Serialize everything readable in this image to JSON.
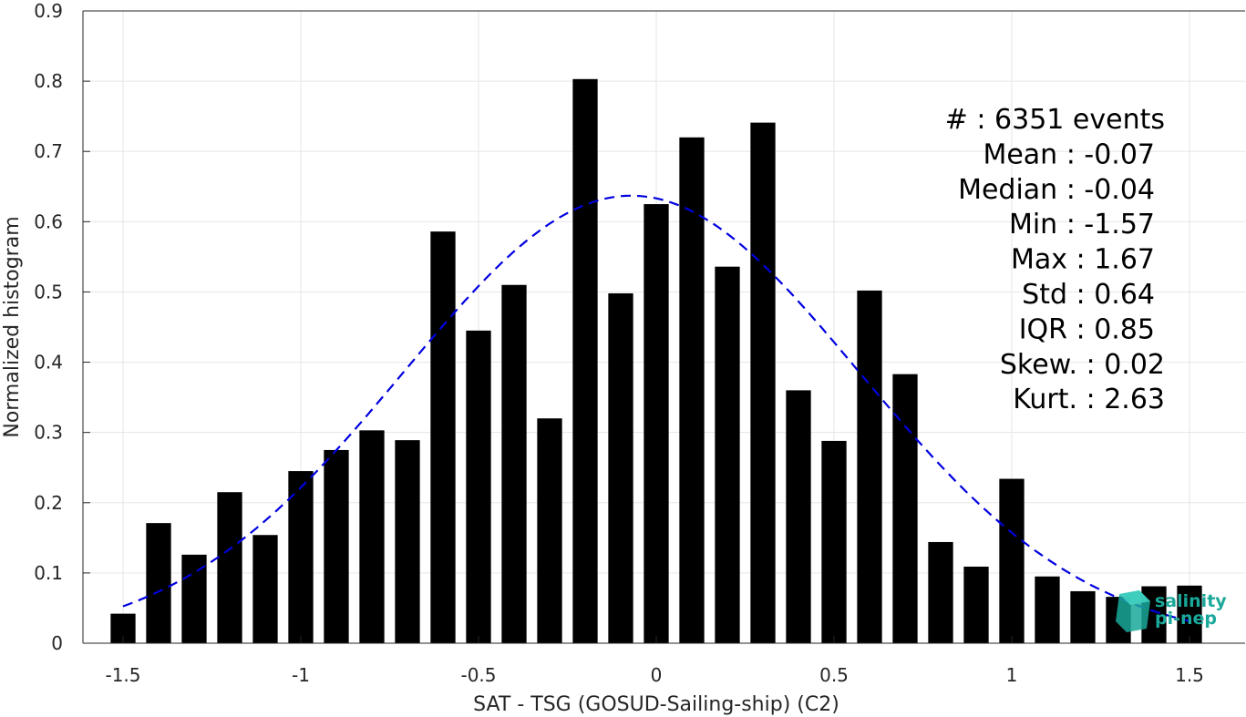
{
  "chart_data": {
    "type": "bar",
    "xlabel": "SAT - TSG (GOSUD-Sailing-ship) (C2)",
    "ylabel": "Normalized histogram",
    "xlim": [
      -1.55,
      1.55
    ],
    "ylim": [
      0,
      0.9
    ],
    "xticks": [
      -1.5,
      -1,
      -0.5,
      0,
      0.5,
      1,
      1.5
    ],
    "xtick_labels": [
      "-1.5",
      "-1",
      "-0.5",
      "0",
      "0.5",
      "1",
      "1.5"
    ],
    "yticks": [
      0,
      0.1,
      0.2,
      0.3,
      0.4,
      0.5,
      0.6,
      0.7,
      0.8,
      0.9
    ],
    "ytick_labels": [
      "0",
      "0.1",
      "0.2",
      "0.3",
      "0.4",
      "0.5",
      "0.6",
      "0.7",
      "0.8",
      "0.9"
    ],
    "grid": true,
    "bar_color": "#000000",
    "bar_width": 0.07,
    "x": [
      -1.5,
      -1.4,
      -1.3,
      -1.2,
      -1.1,
      -1.0,
      -0.9,
      -0.8,
      -0.7,
      -0.6,
      -0.5,
      -0.4,
      -0.3,
      -0.2,
      -0.1,
      0.0,
      0.1,
      0.2,
      0.3,
      0.4,
      0.5,
      0.6,
      0.7,
      0.8,
      0.9,
      1.0,
      1.1,
      1.2,
      1.3,
      1.4,
      1.5
    ],
    "values": [
      0.042,
      0.171,
      0.126,
      0.215,
      0.154,
      0.245,
      0.275,
      0.303,
      0.289,
      0.586,
      0.445,
      0.51,
      0.32,
      0.803,
      0.498,
      0.625,
      0.72,
      0.536,
      0.741,
      0.36,
      0.288,
      0.502,
      0.383,
      0.144,
      0.109,
      0.234,
      0.095,
      0.074,
      0.066,
      0.081,
      0.082
    ],
    "fit_curve": {
      "style": "dashed",
      "color": "#0000e0",
      "mean": -0.07,
      "std": 0.64,
      "x_range": [
        -1.5,
        1.5
      ]
    },
    "annotation_lines": [
      "#  : 6351 events",
      "Mean : -0.07",
      "Median : -0.04",
      "Min : -1.57",
      "Max : 1.67",
      "Std : 0.64",
      "IQR : 0.85",
      "Skew. : 0.02",
      "Kurt. : 2.63"
    ]
  },
  "logo": {
    "line1": "salinity",
    "line2": "pi-nep",
    "color": "#1aa89a"
  }
}
